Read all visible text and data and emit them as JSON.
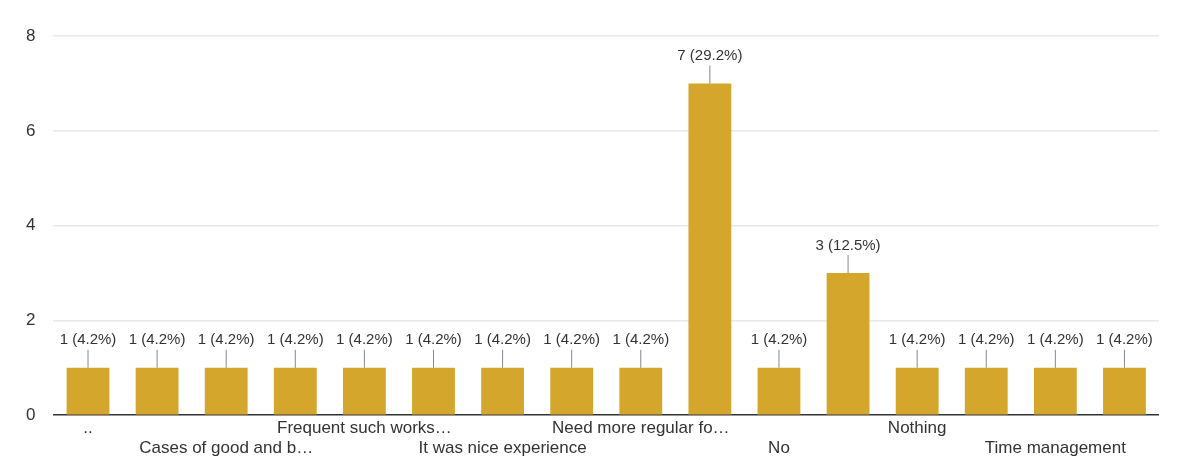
{
  "chart_data": {
    "type": "bar",
    "categories": [
      "..",
      null,
      "Cases of good and b…",
      null,
      "Frequent such works…",
      null,
      "It was nice experience",
      null,
      "Need more regular fo…",
      null,
      "No",
      null,
      "Nothing",
      null,
      "Time management",
      null
    ],
    "values": [
      1,
      1,
      1,
      1,
      1,
      1,
      1,
      1,
      1,
      7,
      1,
      3,
      1,
      1,
      1,
      1
    ],
    "value_labels": [
      "1 (4.2%)",
      "1 (4.2%)",
      "1 (4.2%)",
      "1 (4.2%)",
      "1 (4.2%)",
      "1 (4.2%)",
      "1 (4.2%)",
      "1 (4.2%)",
      "1 (4.2%)",
      "7 (29.2%)",
      "1 (4.2%)",
      "3 (12.5%)",
      "1 (4.2%)",
      "1 (4.2%)",
      "1 (4.2%)",
      "1 (4.2%)"
    ],
    "color": "#d4a72c",
    "ylim": [
      0,
      8
    ],
    "yticks": [
      0,
      2,
      4,
      6,
      8
    ],
    "grid": "y",
    "legend": false
  }
}
